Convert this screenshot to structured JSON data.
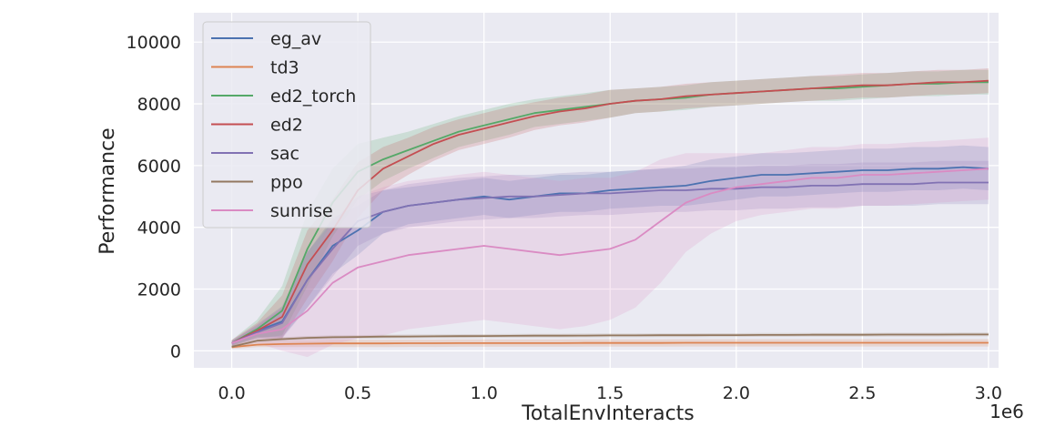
{
  "chart_data": {
    "type": "line",
    "title": "",
    "xlabel": "TotalEnvInteracts",
    "ylabel": "Performance",
    "x_multiplier_label": "1e6",
    "xlim": [
      -0.15,
      3.04
    ],
    "ylim": [
      -550,
      10950
    ],
    "xticks": [
      0.0,
      0.5,
      1.0,
      1.5,
      2.0,
      2.5,
      3.0
    ],
    "xtick_labels": [
      "0.0",
      "0.5",
      "1.0",
      "1.5",
      "2.0",
      "2.5",
      "3.0"
    ],
    "yticks": [
      0,
      2000,
      4000,
      6000,
      8000,
      10000
    ],
    "ytick_labels": [
      "0",
      "2000",
      "4000",
      "6000",
      "8000",
      "10000"
    ],
    "grid": true,
    "shaded_band": "variability range around each series",
    "legend_position": "top-left",
    "x": [
      0.0,
      0.1,
      0.2,
      0.3,
      0.4,
      0.5,
      0.6,
      0.7,
      0.8,
      0.9,
      1.0,
      1.1,
      1.2,
      1.3,
      1.4,
      1.5,
      1.6,
      1.7,
      1.8,
      1.9,
      2.0,
      2.1,
      2.2,
      2.3,
      2.4,
      2.5,
      2.6,
      2.7,
      2.8,
      2.9,
      3.0
    ],
    "series": [
      {
        "name": "eg_av",
        "color": "#4c72b0",
        "values": [
          250,
          650,
          950,
          2300,
          3400,
          3900,
          4500,
          4700,
          4800,
          4900,
          5000,
          4900,
          5000,
          5100,
          5100,
          5200,
          5250,
          5300,
          5350,
          5500,
          5600,
          5700,
          5700,
          5750,
          5800,
          5850,
          5850,
          5900,
          5900,
          5950,
          5900
        ],
        "spread": [
          80,
          200,
          500,
          900,
          900,
          800,
          700,
          600,
          600,
          600,
          600,
          600,
          600,
          600,
          600,
          600,
          600,
          600,
          650,
          700,
          700,
          700,
          700,
          700,
          700,
          700,
          700,
          700,
          700,
          700,
          700
        ]
      },
      {
        "name": "td3",
        "color": "#dd8452",
        "values": [
          120,
          200,
          220,
          230,
          240,
          240,
          240,
          245,
          245,
          250,
          250,
          250,
          250,
          250,
          255,
          255,
          255,
          255,
          260,
          260,
          260,
          260,
          260,
          260,
          260,
          260,
          260,
          260,
          260,
          260,
          260
        ],
        "spread": [
          60,
          80,
          100,
          110,
          120,
          120,
          120,
          120,
          120,
          120,
          120,
          120,
          120,
          120,
          120,
          120,
          120,
          120,
          120,
          120,
          120,
          120,
          120,
          120,
          120,
          120,
          120,
          120,
          120,
          120,
          120
        ]
      },
      {
        "name": "ed2_torch",
        "color": "#55a868",
        "values": [
          250,
          700,
          1300,
          3300,
          4800,
          5800,
          6200,
          6500,
          6800,
          7100,
          7300,
          7500,
          7700,
          7800,
          7900,
          8000,
          8100,
          8150,
          8200,
          8300,
          8350,
          8400,
          8450,
          8500,
          8500,
          8550,
          8600,
          8650,
          8650,
          8700,
          8700
        ],
        "spread": [
          100,
          300,
          800,
          1200,
          1100,
          900,
          700,
          600,
          550,
          500,
          500,
          500,
          450,
          450,
          450,
          450,
          400,
          400,
          400,
          400,
          400,
          400,
          400,
          400,
          400,
          400,
          400,
          400,
          400,
          400,
          400
        ]
      },
      {
        "name": "ed2",
        "color": "#c44e52",
        "values": [
          250,
          650,
          1100,
          2800,
          3900,
          5200,
          5900,
          6300,
          6700,
          7000,
          7200,
          7400,
          7600,
          7750,
          7850,
          8000,
          8100,
          8150,
          8250,
          8300,
          8350,
          8400,
          8450,
          8500,
          8550,
          8600,
          8600,
          8650,
          8700,
          8700,
          8750
        ],
        "spread": [
          100,
          250,
          700,
          1100,
          1000,
          900,
          700,
          600,
          550,
          500,
          500,
          500,
          450,
          450,
          450,
          450,
          400,
          400,
          400,
          400,
          400,
          400,
          400,
          400,
          400,
          400,
          400,
          400,
          400,
          400,
          400
        ]
      },
      {
        "name": "sac",
        "color": "#8172b3",
        "values": [
          250,
          600,
          900,
          2300,
          3300,
          4200,
          4500,
          4700,
          4800,
          4900,
          4950,
          5000,
          5000,
          5050,
          5100,
          5100,
          5150,
          5200,
          5200,
          5250,
          5250,
          5300,
          5300,
          5350,
          5350,
          5400,
          5400,
          5400,
          5450,
          5450,
          5450
        ],
        "spread": [
          80,
          200,
          500,
          900,
          900,
          800,
          700,
          700,
          700,
          700,
          700,
          700,
          700,
          700,
          700,
          700,
          700,
          700,
          700,
          700,
          700,
          700,
          700,
          700,
          700,
          700,
          700,
          700,
          700,
          700,
          700
        ]
      },
      {
        "name": "ppo",
        "color": "#937860",
        "values": [
          130,
          330,
          380,
          420,
          440,
          450,
          460,
          465,
          470,
          475,
          480,
          485,
          490,
          490,
          495,
          500,
          500,
          505,
          505,
          510,
          510,
          515,
          515,
          520,
          520,
          520,
          525,
          525,
          525,
          530,
          530
        ],
        "spread": [
          40,
          60,
          60,
          60,
          60,
          60,
          60,
          60,
          60,
          60,
          60,
          60,
          60,
          60,
          60,
          60,
          60,
          60,
          60,
          60,
          60,
          60,
          60,
          60,
          60,
          60,
          60,
          60,
          60,
          60,
          60
        ]
      },
      {
        "name": "sunrise",
        "color": "#da8bc3",
        "values": [
          250,
          550,
          700,
          1300,
          2200,
          2700,
          2900,
          3100,
          3200,
          3300,
          3400,
          3300,
          3200,
          3100,
          3200,
          3300,
          3600,
          4200,
          4800,
          5100,
          5300,
          5400,
          5500,
          5600,
          5600,
          5700,
          5700,
          5750,
          5800,
          5850,
          5900
        ],
        "spread": [
          100,
          300,
          700,
          1500,
          2000,
          2300,
          2400,
          2400,
          2400,
          2400,
          2400,
          2400,
          2400,
          2400,
          2400,
          2300,
          2200,
          2000,
          1600,
          1300,
          1100,
          1000,
          1000,
          1000,
          1000,
          1000,
          1000,
          1000,
          1000,
          1000,
          1000
        ]
      }
    ]
  }
}
